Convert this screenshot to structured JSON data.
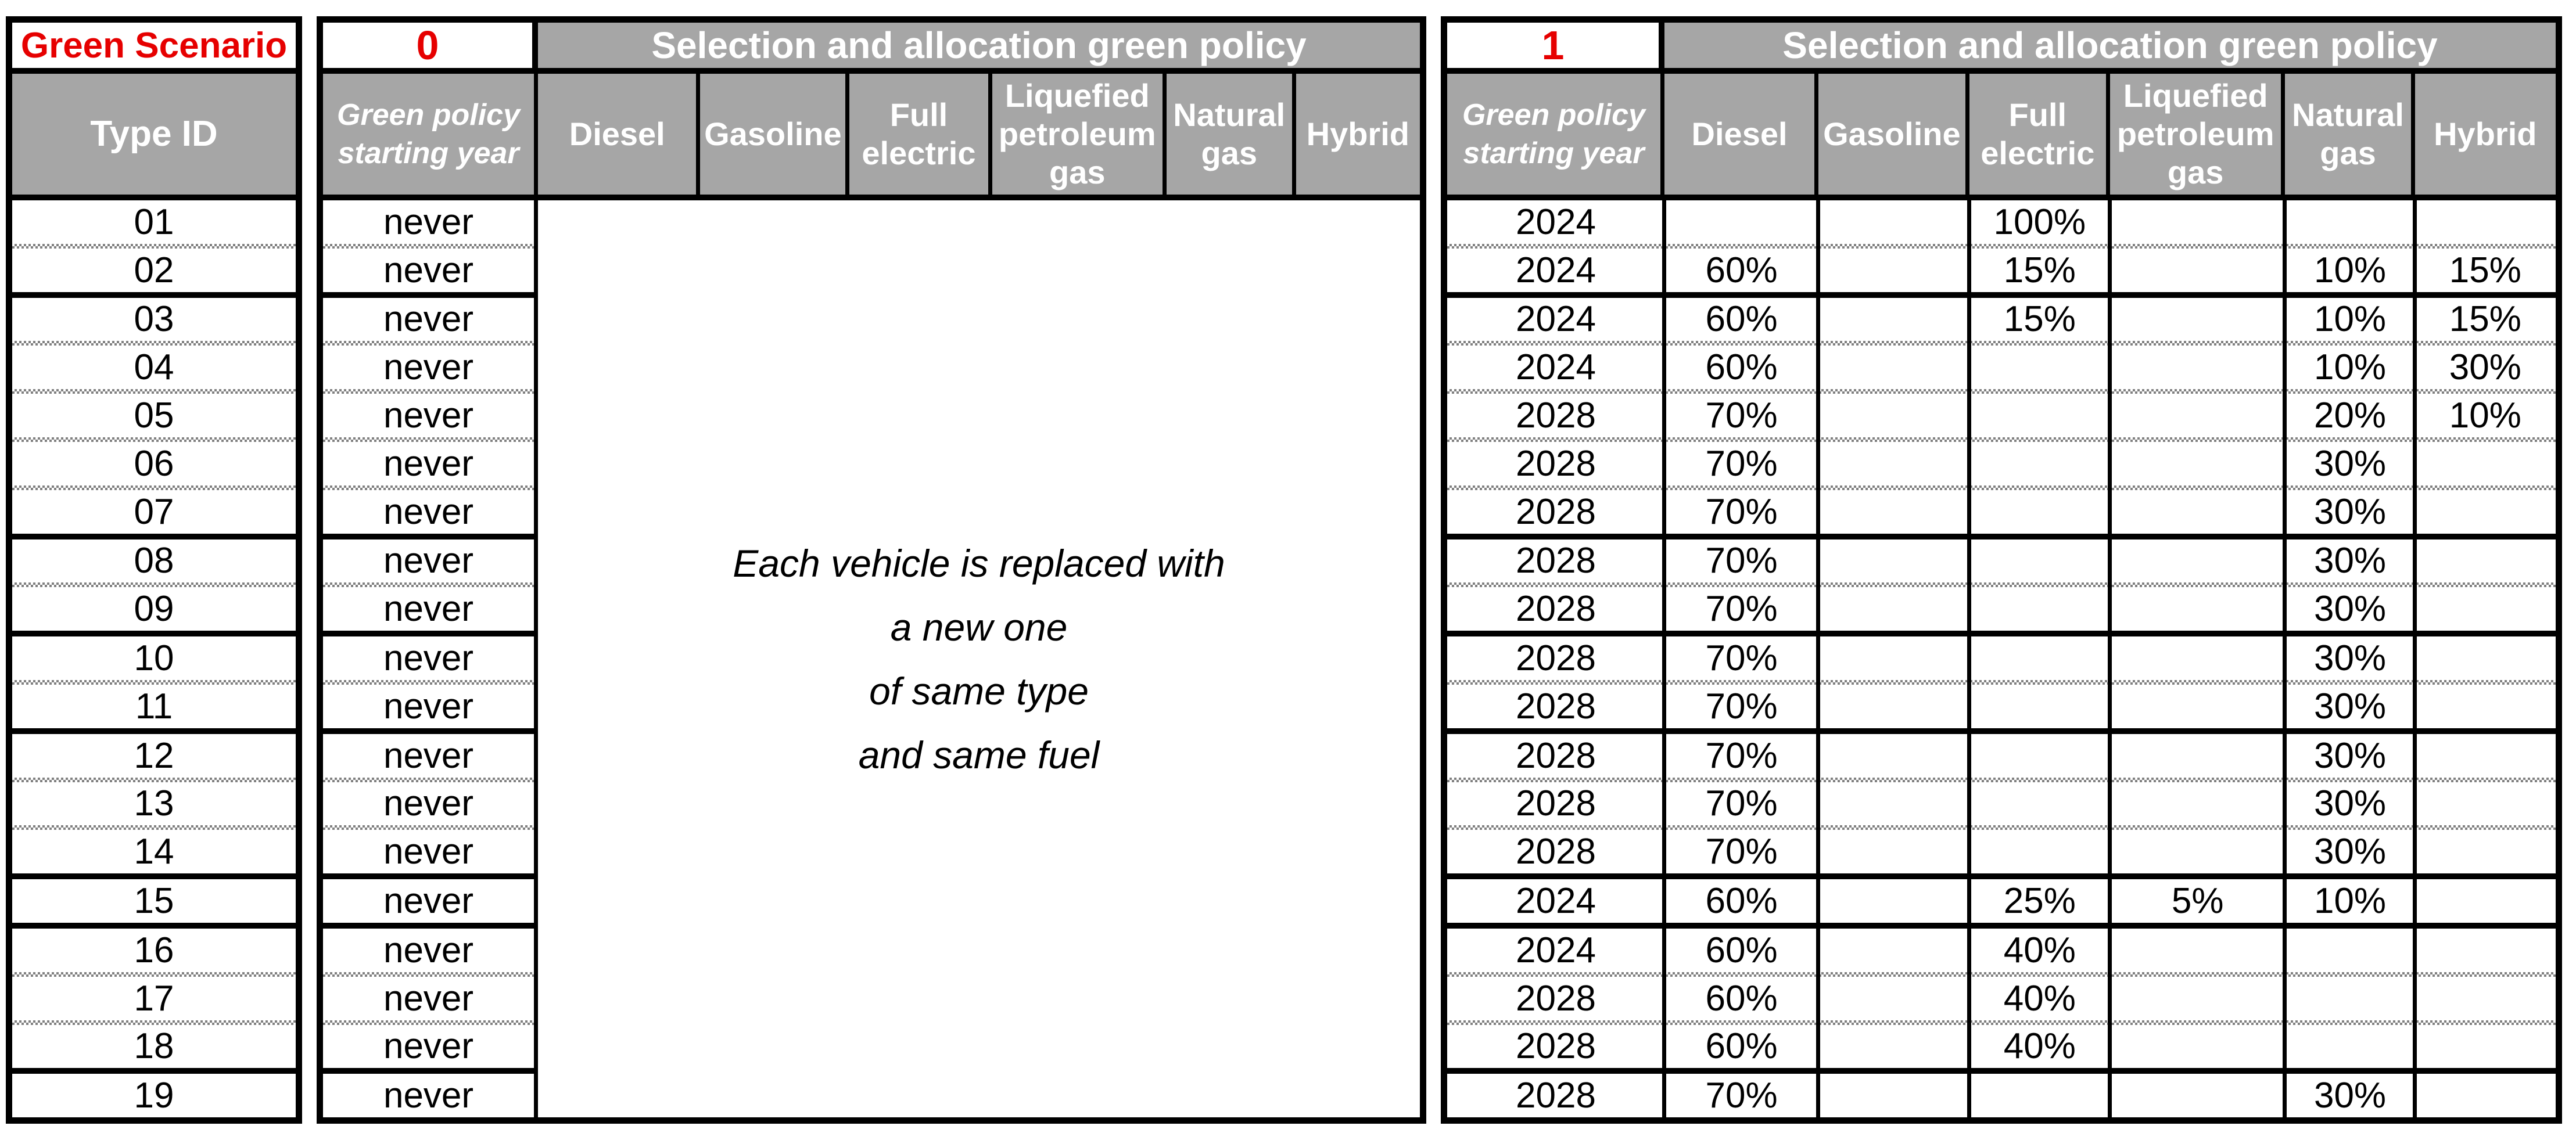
{
  "sheet": {
    "scenario_header": "Green Scenario",
    "type_id_header": "Type ID",
    "type_ids": [
      "01",
      "02",
      "03",
      "04",
      "05",
      "06",
      "07",
      "08",
      "09",
      "10",
      "11",
      "12",
      "13",
      "14",
      "15",
      "16",
      "17",
      "18",
      "19"
    ],
    "group_breaks_after_row": [
      2,
      7,
      9,
      11,
      14,
      15,
      18
    ],
    "colors": {
      "header_gray": "#a6a6a6",
      "accent_red": "#e60000",
      "grid_black": "#000000",
      "row_divider_gray": "#808080"
    },
    "scenario0": {
      "number": "0",
      "policy_title": "Selection and allocation green policy",
      "starting_year_header": "Green policy starting year",
      "fuel_columns": [
        "Diesel",
        "Gasoline",
        "Full electric",
        "Liquefied petroleum gas",
        "Natural gas",
        "Hybrid"
      ],
      "starting_years": [
        "never",
        "never",
        "never",
        "never",
        "never",
        "never",
        "never",
        "never",
        "never",
        "never",
        "never",
        "never",
        "never",
        "never",
        "never",
        "never",
        "never",
        "never",
        "never"
      ],
      "note_lines": [
        "Each vehicle is replaced with",
        "a new one",
        "of same type",
        "and same fuel"
      ]
    },
    "scenario1": {
      "number": "1",
      "policy_title": "Selection and allocation green policy",
      "starting_year_header": "Green policy starting year",
      "fuel_columns": [
        "Diesel",
        "Gasoline",
        "Full electric",
        "Liquefied petroleum gas",
        "Natural gas",
        "Hybrid"
      ],
      "rows": [
        {
          "year": "2024",
          "values": [
            "",
            "",
            "100%",
            "",
            "",
            ""
          ]
        },
        {
          "year": "2024",
          "values": [
            "60%",
            "",
            "15%",
            "",
            "10%",
            "15%"
          ]
        },
        {
          "year": "2024",
          "values": [
            "60%",
            "",
            "15%",
            "",
            "10%",
            "15%"
          ]
        },
        {
          "year": "2024",
          "values": [
            "60%",
            "",
            "",
            "",
            "10%",
            "30%"
          ]
        },
        {
          "year": "2028",
          "values": [
            "70%",
            "",
            "",
            "",
            "20%",
            "10%"
          ]
        },
        {
          "year": "2028",
          "values": [
            "70%",
            "",
            "",
            "",
            "30%",
            ""
          ]
        },
        {
          "year": "2028",
          "values": [
            "70%",
            "",
            "",
            "",
            "30%",
            ""
          ]
        },
        {
          "year": "2028",
          "values": [
            "70%",
            "",
            "",
            "",
            "30%",
            ""
          ]
        },
        {
          "year": "2028",
          "values": [
            "70%",
            "",
            "",
            "",
            "30%",
            ""
          ]
        },
        {
          "year": "2028",
          "values": [
            "70%",
            "",
            "",
            "",
            "30%",
            ""
          ]
        },
        {
          "year": "2028",
          "values": [
            "70%",
            "",
            "",
            "",
            "30%",
            ""
          ]
        },
        {
          "year": "2028",
          "values": [
            "70%",
            "",
            "",
            "",
            "30%",
            ""
          ]
        },
        {
          "year": "2028",
          "values": [
            "70%",
            "",
            "",
            "",
            "30%",
            ""
          ]
        },
        {
          "year": "2028",
          "values": [
            "70%",
            "",
            "",
            "",
            "30%",
            ""
          ]
        },
        {
          "year": "2024",
          "values": [
            "60%",
            "",
            "25%",
            "5%",
            "10%",
            ""
          ]
        },
        {
          "year": "2024",
          "values": [
            "60%",
            "",
            "40%",
            "",
            "",
            ""
          ]
        },
        {
          "year": "2028",
          "values": [
            "60%",
            "",
            "40%",
            "",
            "",
            ""
          ]
        },
        {
          "year": "2028",
          "values": [
            "60%",
            "",
            "40%",
            "",
            "",
            ""
          ]
        },
        {
          "year": "2028",
          "values": [
            "70%",
            "",
            "",
            "",
            "30%",
            ""
          ]
        }
      ]
    }
  }
}
